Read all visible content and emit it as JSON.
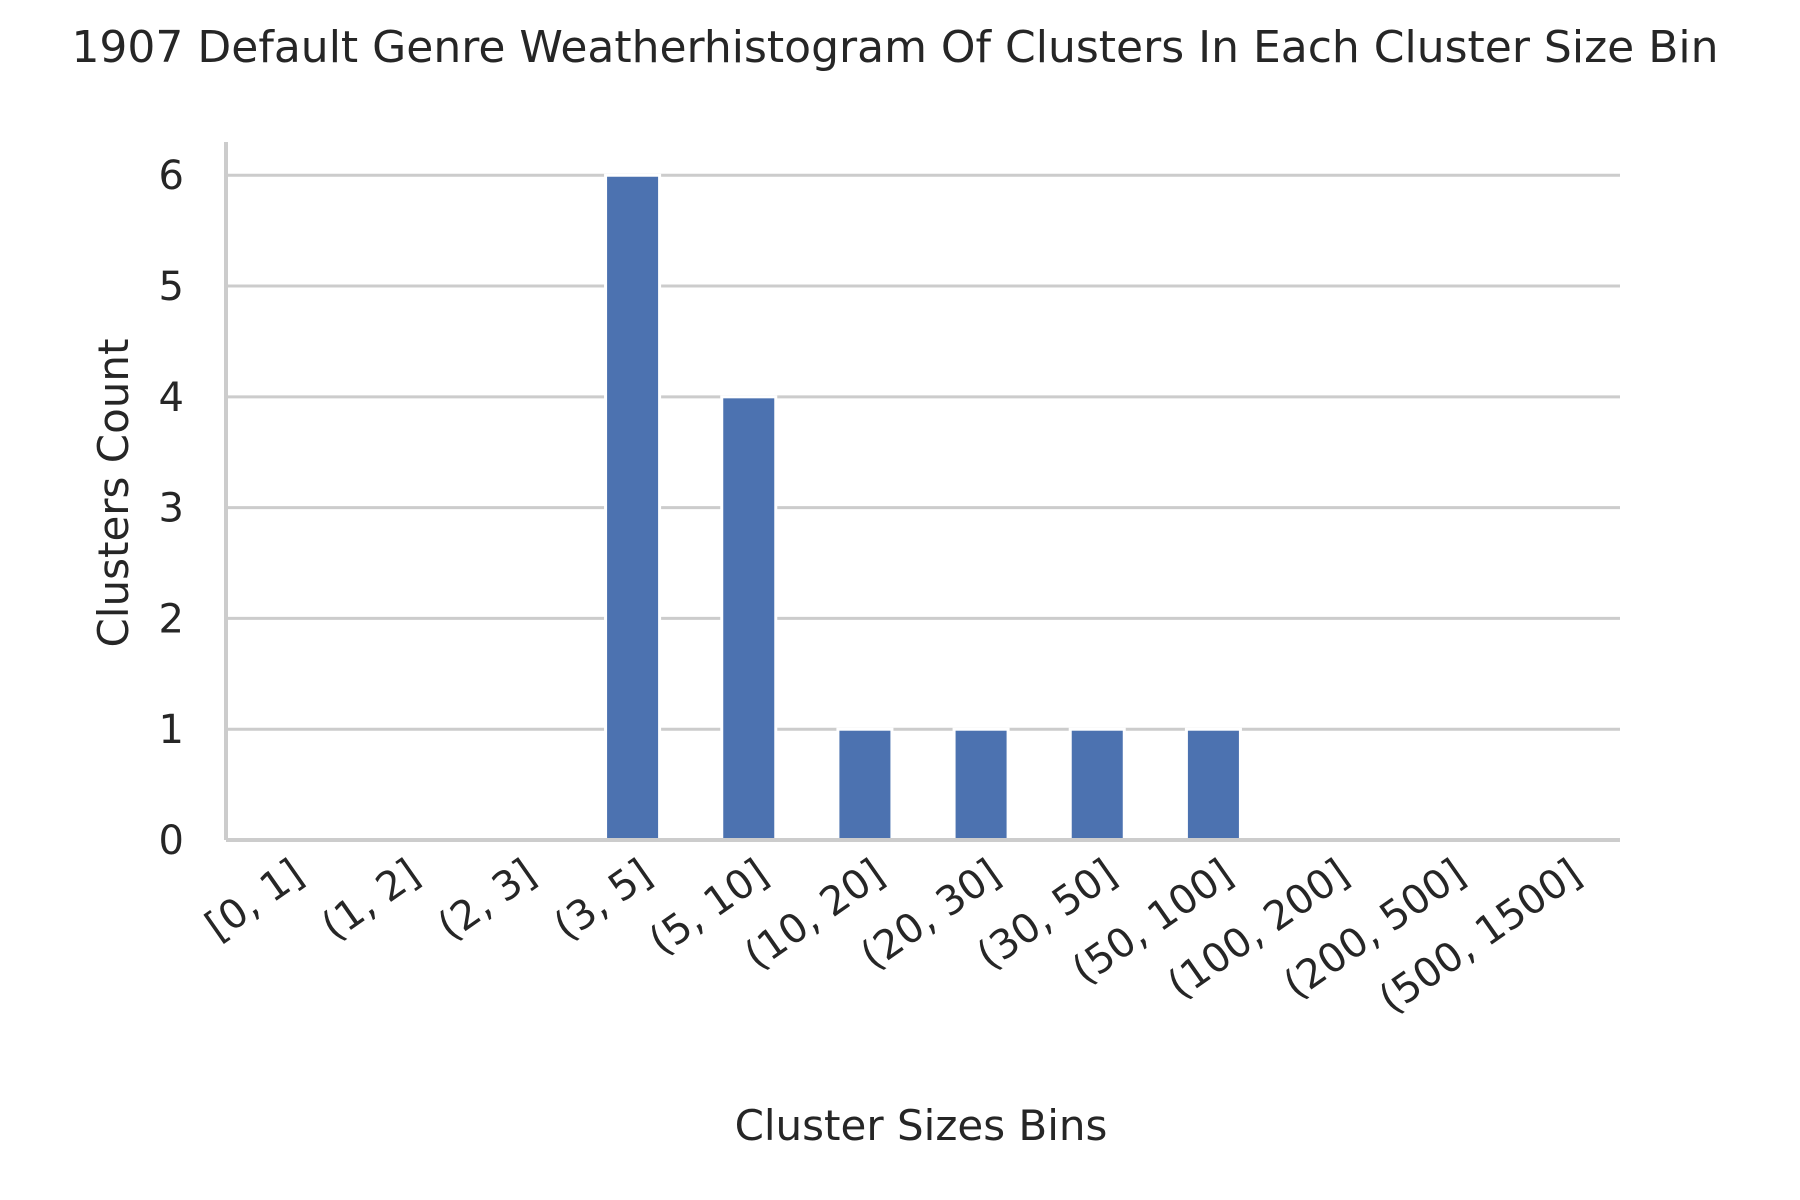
{
  "chart_data": {
    "type": "bar",
    "title": "1907 Default Genre Weatherhistogram Of Clusters In Each Cluster Size Bin",
    "xlabel": "Cluster Sizes Bins",
    "ylabel": "Clusters Count",
    "categories": [
      "[0, 1]",
      "(1, 2]",
      "(2, 3]",
      "(3, 5]",
      "(5, 10]",
      "(10, 20]",
      "(20, 30]",
      "(30, 50]",
      "(50, 100]",
      "(100, 200]",
      "(200, 500]",
      "(500, 1500]"
    ],
    "values": [
      0,
      0,
      0,
      6,
      4,
      1,
      1,
      1,
      1,
      0,
      0,
      0
    ],
    "yticks": [
      0,
      1,
      2,
      3,
      4,
      5,
      6
    ],
    "ylim": [
      0,
      6.3
    ],
    "grid": "horizontal",
    "legend": "none",
    "bar_color": "#4c72b0"
  }
}
